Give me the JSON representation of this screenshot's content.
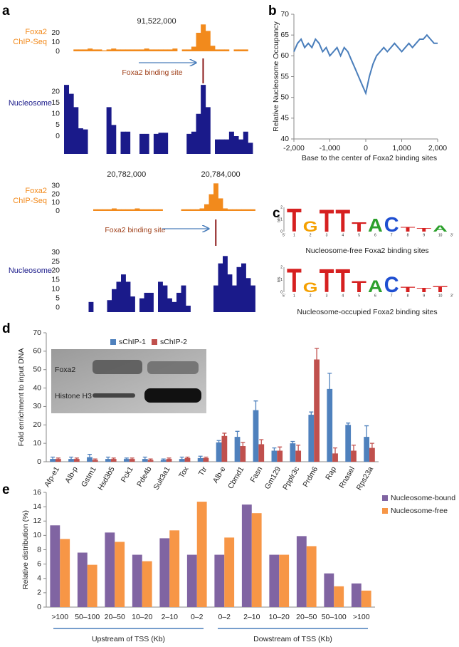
{
  "chart_data": [
    {
      "type": "track",
      "panel": "a",
      "xlim": [
        91519300,
        91524800
      ],
      "xticks": [
        {
          "value": 91522000,
          "label": "91,522,000"
        }
      ],
      "annotation": "Foxa2 binding site",
      "tracks": [
        {
          "name": [
            "Foxa2",
            "ChIP-Seq"
          ],
          "color": "#f28a1c",
          "ylim": [
            0,
            30
          ],
          "yticks": [
            0,
            10,
            20
          ],
          "values": [
            null,
            null,
            2,
            2,
            2,
            3,
            2,
            2,
            1,
            2,
            3,
            2,
            2,
            2,
            2,
            2,
            2,
            3,
            2,
            2,
            2,
            2,
            2,
            3,
            null,
            2,
            2,
            5,
            20,
            29,
            22,
            6,
            2,
            2,
            2,
            null,
            2,
            2,
            2,
            null
          ]
        },
        {
          "name": [
            "Nucleosome"
          ],
          "color": "#1a1a8a",
          "ylim": [
            -8,
            24
          ],
          "yticks": [
            0,
            5,
            10,
            15,
            20
          ],
          "values": [
            23,
            19,
            13,
            3.5,
            3,
            null,
            null,
            null,
            null,
            13,
            5,
            null,
            2,
            2,
            null,
            null,
            1,
            1,
            null,
            1,
            1.5,
            1.5,
            null,
            null,
            null,
            null,
            1,
            2,
            10,
            23,
            13,
            null,
            -1.5,
            -1.5,
            -1.5,
            2,
            0,
            -1.5,
            2,
            -3
          ]
        }
      ]
    },
    {
      "type": "track",
      "xlim": [
        20780900,
        20784830
      ],
      "xticks": [
        {
          "value": 20782000,
          "label": "20,782,000"
        },
        {
          "value": 20784000,
          "label": "20,784,000"
        }
      ],
      "annotation": "Foxa2 binding site",
      "tracks": [
        {
          "name": [
            "Foxa2",
            "ChIP-Seq"
          ],
          "color": "#f28a1c",
          "ylim": [
            0,
            35
          ],
          "yticks": [
            0,
            10,
            20,
            30
          ],
          "values": [
            null,
            null,
            null,
            null,
            2,
            2,
            2,
            2,
            3,
            2,
            2,
            2,
            2,
            3,
            2,
            2,
            2,
            2,
            2,
            null,
            null,
            null,
            null,
            2,
            2,
            2,
            2,
            3,
            8,
            20,
            33,
            15,
            3,
            2,
            2,
            2,
            2,
            2,
            2,
            null
          ]
        },
        {
          "name": [
            "Nucleosome"
          ],
          "color": "#1a1a8a",
          "ylim": [
            -2.5,
            32
          ],
          "yticks": [
            0,
            5,
            10,
            15,
            20,
            25,
            30
          ],
          "values": [
            null,
            null,
            null,
            3,
            null,
            null,
            null,
            4,
            10,
            14,
            18,
            14,
            6,
            null,
            5,
            8,
            8,
            null,
            14,
            12,
            5,
            3,
            8,
            12,
            1,
            null,
            null,
            null,
            null,
            null,
            12,
            24,
            28,
            18,
            12,
            22,
            24,
            16,
            12,
            null
          ]
        }
      ]
    },
    {
      "type": "line",
      "panel": "b",
      "color": "#4a7ebb",
      "ylabel": "Relative Nucleosome Occupancy",
      "xlabel": "Base to the center of Foxa2 binding sites",
      "xlim": [
        -2000,
        2000
      ],
      "ylim": [
        40,
        70
      ],
      "xticks": [
        {
          "value": -2000,
          "label": "-2,000"
        },
        {
          "value": -1000,
          "label": "-1,000"
        },
        0,
        {
          "value": 1000,
          "label": "1,000"
        },
        {
          "value": 2000,
          "label": "2,000"
        }
      ],
      "yticks": [
        40,
        45,
        50,
        55,
        60,
        65,
        70
      ],
      "x": [
        -2000,
        -1900,
        -1800,
        -1700,
        -1600,
        -1500,
        -1400,
        -1300,
        -1200,
        -1100,
        -1000,
        -900,
        -800,
        -700,
        -600,
        -500,
        -400,
        -300,
        -200,
        -100,
        0,
        100,
        200,
        300,
        400,
        500,
        600,
        700,
        800,
        900,
        1000,
        1100,
        1200,
        1300,
        1400,
        1500,
        1600,
        1700,
        1800,
        1900,
        2000
      ],
      "values": [
        61,
        63,
        64,
        62,
        63,
        62,
        64,
        63,
        61,
        62,
        60,
        61,
        62,
        60,
        62,
        61,
        59,
        57,
        55,
        53,
        51,
        55,
        58,
        60,
        61,
        62,
        61,
        62,
        63,
        62,
        61,
        62,
        63,
        62,
        63,
        64,
        64,
        65,
        64,
        63,
        63
      ]
    },
    {
      "type": "logo",
      "panel": "c",
      "ylabel": "bits",
      "ylim": [
        0,
        2
      ],
      "yticks": [
        0,
        1,
        2
      ],
      "positions": [
        1,
        2,
        3,
        4,
        5,
        6,
        7,
        8,
        9,
        10
      ],
      "ends": [
        "5'",
        "3'"
      ],
      "colors": {
        "A": "#2ca02c",
        "C": "#1f4fd1",
        "G": "#f5a000",
        "T": "#d62020"
      },
      "logos": [
        {
          "caption": "Nucleosome-free Foxa2 binding sites",
          "letters": [
            {
              "letter": "T",
              "height": 1.95
            },
            {
              "letter": "G",
              "height": 0.9
            },
            {
              "letter": "T",
              "height": 1.9
            },
            {
              "letter": "T",
              "height": 1.9
            },
            {
              "letter": "T",
              "height": 0.8
            },
            {
              "letter": "A",
              "height": 1.1
            },
            {
              "letter": "C",
              "height": 1.2
            },
            {
              "letter": "T",
              "height": 0.4
            },
            {
              "letter": "T",
              "height": 0.3
            },
            {
              "letter": "A",
              "height": 0.5
            }
          ]
        },
        {
          "caption": "Nucleosome-occupied Foxa2 binding sites",
          "letters": [
            {
              "letter": "T",
              "height": 1.95
            },
            {
              "letter": "G",
              "height": 0.8
            },
            {
              "letter": "T",
              "height": 1.9
            },
            {
              "letter": "T",
              "height": 1.9
            },
            {
              "letter": "T",
              "height": 0.9
            },
            {
              "letter": "A",
              "height": 1.0
            },
            {
              "letter": "C",
              "height": 1.3
            },
            {
              "letter": "T",
              "height": 0.45
            },
            {
              "letter": "T",
              "height": 0.35
            },
            {
              "letter": "T",
              "height": 0.5
            }
          ]
        }
      ]
    },
    {
      "type": "bar",
      "panel": "d",
      "ylabel": "Fold enrichment to input DNA",
      "ylim": [
        0,
        70
      ],
      "yticks": [
        0,
        10,
        20,
        30,
        40,
        50,
        60,
        70
      ],
      "inset_labels": [
        "Foxa2",
        "Histone H3"
      ],
      "categories": [
        "Afp-e1",
        "Alb-p",
        "Gstm1",
        "Hsd3b5",
        "Pck1",
        "Pde4b",
        "Sult3a1",
        "Tox",
        "Ttr",
        "Alb-e",
        "Cbmd1",
        "Fasn",
        "Gm129",
        "Ppplr3c",
        "Prdm6",
        "Rap",
        "Rnasel",
        "Rps23a"
      ],
      "series": [
        {
          "name": "sChIP-1",
          "color": "#4f81bd",
          "values": [
            1.5,
            1.5,
            2.5,
            1.5,
            1.5,
            1.5,
            1,
            1.5,
            2,
            10.5,
            13.5,
            28,
            6,
            10,
            25.5,
            39.5,
            20,
            13.5
          ],
          "errors": [
            1,
            1,
            1.5,
            1,
            0.5,
            1,
            0.5,
            1,
            1,
            1,
            3,
            5,
            1.5,
            1,
            1.5,
            8.5,
            1,
            6
          ]
        },
        {
          "name": "sChIP-2",
          "color": "#c0504d",
          "values": [
            1.5,
            1.5,
            1,
            1.5,
            1.5,
            1,
            1.5,
            2,
            2,
            14,
            8.5,
            9.5,
            6,
            6,
            55.5,
            4.5,
            6,
            7.5
          ],
          "errors": [
            0.5,
            0.5,
            0.5,
            0.5,
            0.5,
            0.5,
            0.5,
            0.5,
            0.5,
            1.5,
            2,
            2.5,
            2,
            3,
            6,
            3,
            3,
            2.5
          ]
        }
      ]
    },
    {
      "type": "bar",
      "panel": "e",
      "ylabel": "Relative distribution (%)",
      "ylim": [
        0,
        16
      ],
      "yticks": [
        0,
        2,
        4,
        6,
        8,
        10,
        12,
        14,
        16
      ],
      "categories": [
        ">100",
        "50–100",
        "20–50",
        "10–20",
        "2–10",
        "0–2",
        "0–2",
        "2–10",
        "10–20",
        "20–50",
        "50–100",
        ">100"
      ],
      "groups": [
        "Upstream of TSS (Kb)",
        "Dowstream of TSS (Kb)"
      ],
      "series": [
        {
          "name": "Nucleosome-bound",
          "color": "#8064a2",
          "values": [
            11.4,
            7.6,
            10.4,
            7.3,
            9.6,
            7.3,
            7.3,
            14.3,
            7.3,
            9.9,
            4.7,
            3.3
          ]
        },
        {
          "name": "Nucleosome-free",
          "color": "#f79646",
          "values": [
            9.5,
            5.9,
            9.1,
            6.4,
            10.7,
            14.7,
            9.7,
            13.1,
            7.3,
            8.5,
            2.9,
            2.3
          ]
        }
      ]
    }
  ]
}
